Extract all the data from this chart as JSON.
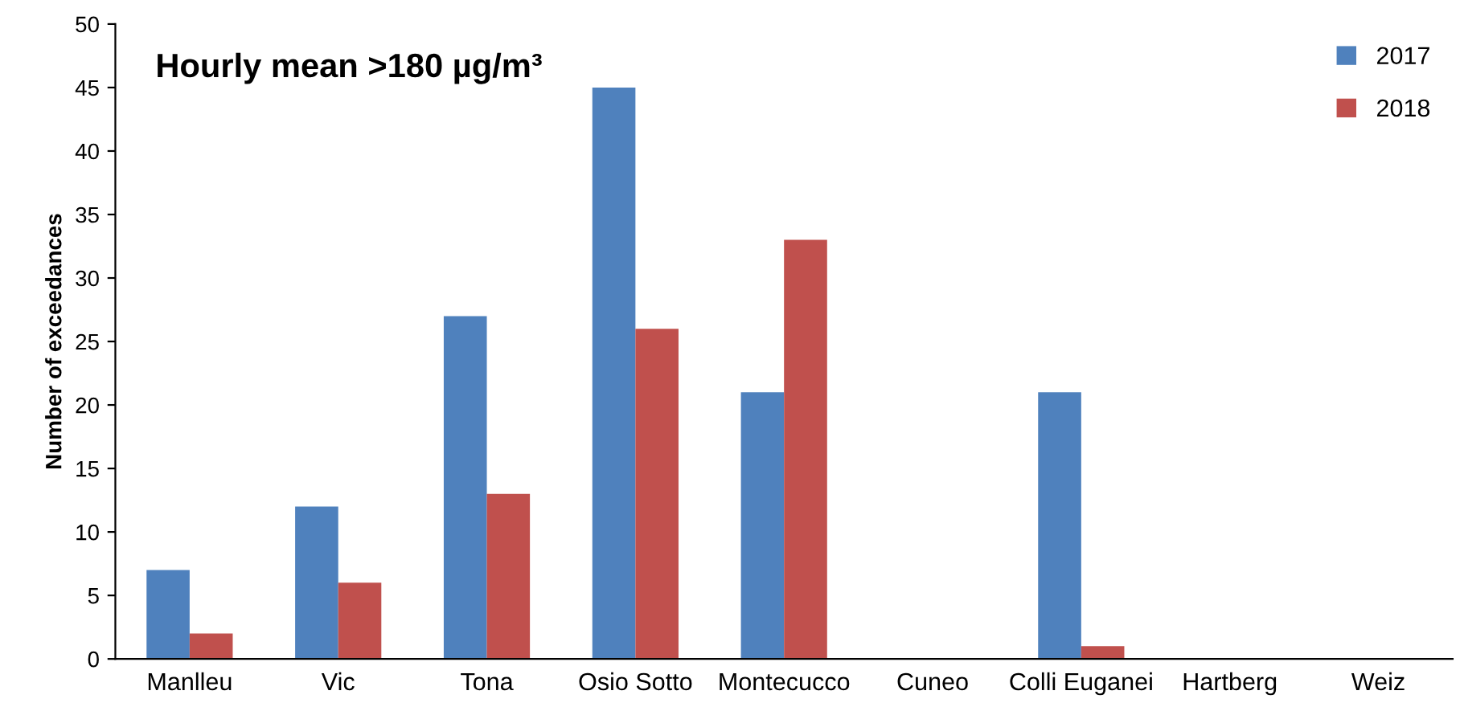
{
  "chart_data": {
    "type": "bar",
    "title": "Hourly mean >180 µg/m³",
    "ylabel": "Number of exceedances",
    "categories": [
      "Manlleu",
      "Vic",
      "Tona",
      "Osio Sotto",
      "Montecucco",
      "Cuneo",
      "Colli Euganei",
      "Hartberg",
      "Weiz"
    ],
    "series": [
      {
        "name": "2017",
        "color": "#4f81bd",
        "values": [
          7,
          12,
          27,
          45,
          21,
          0,
          21,
          0,
          0
        ]
      },
      {
        "name": "2018",
        "color": "#c0504d",
        "values": [
          2,
          6,
          13,
          26,
          33,
          0,
          1,
          0,
          0
        ]
      }
    ],
    "ylim": [
      0,
      50
    ],
    "yticks": [
      0,
      5,
      10,
      15,
      20,
      25,
      30,
      35,
      40,
      45,
      50
    ],
    "grid": false,
    "legend": "top right"
  }
}
